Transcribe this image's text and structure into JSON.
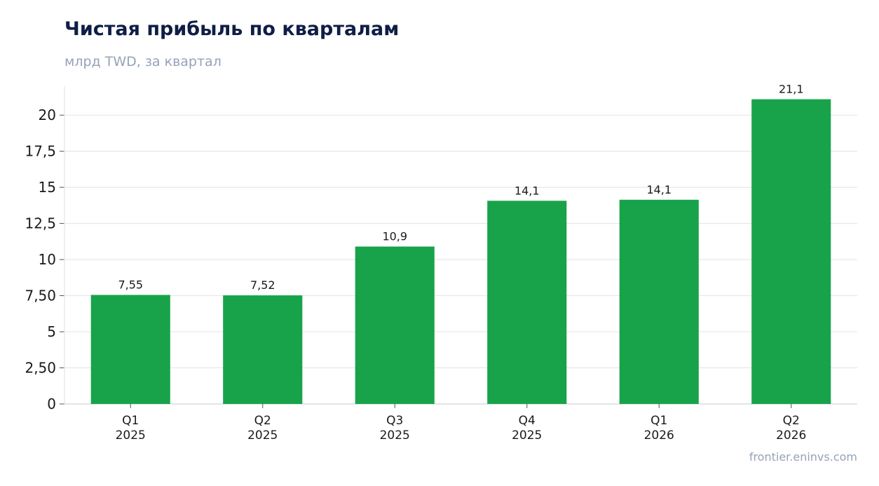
{
  "chart_data": {
    "type": "bar",
    "title": "Чистая прибыль по кварталам",
    "subtitle": "млрд TWD, за квартал",
    "categories": [
      [
        "Q1",
        "2025"
      ],
      [
        "Q2",
        "2025"
      ],
      [
        "Q3",
        "2025"
      ],
      [
        "Q4",
        "2025"
      ],
      [
        "Q1",
        "2026"
      ],
      [
        "Q2",
        "2026"
      ]
    ],
    "values": [
      7.55,
      7.52,
      10.9,
      14.07,
      14.14,
      21.1
    ],
    "data_labels": [
      "7,55",
      "7,52",
      "10,9",
      "14,1",
      "14,1",
      "21,1"
    ],
    "ylim": [
      0,
      22
    ],
    "yticks": [
      0,
      2.5,
      5,
      7.5,
      10,
      12.5,
      15,
      17.5,
      20
    ],
    "ytick_labels": [
      "0",
      "2,50",
      "5",
      "7,50",
      "10",
      "12,5",
      "15",
      "17,5",
      "20"
    ],
    "grid": true,
    "bar_color": "#18a34a",
    "source": "frontier.eninvs.com"
  }
}
